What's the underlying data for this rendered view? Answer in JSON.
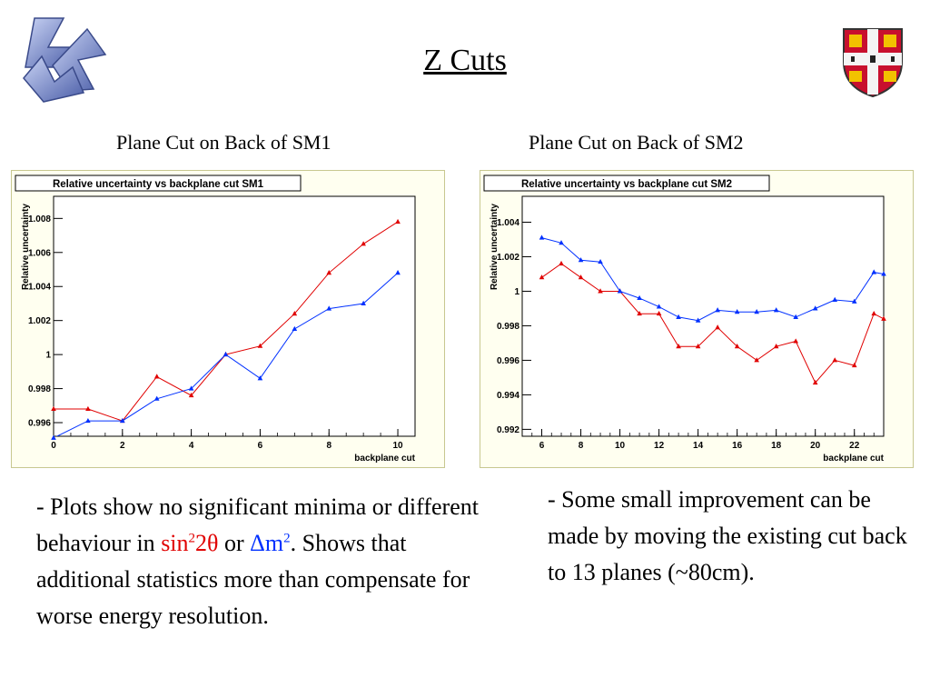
{
  "slide": {
    "title": "Z Cuts",
    "left_subtitle": "Plane Cut on Back of SM1",
    "right_subtitle": "Plane Cut on Back of SM2",
    "left_text": {
      "part1": "- Plots show no significant minima or different behaviour in ",
      "sin_label": "sin",
      "sin_sup": "2",
      "theta_label": "2θ",
      "or_label": " or ",
      "dm_label": "Δm",
      "dm_sup": "2",
      "part2": ". Shows that additional statistics more than compensate for worse energy resolution."
    },
    "right_text": "- Some small improvement can be made by moving the existing cut back to 13 planes (~80cm).",
    "colors": {
      "red": "#e00000",
      "blue": "#0030ff",
      "panel_bg": "#fffff0"
    }
  },
  "chart_data": [
    {
      "type": "line",
      "title": "Relative uncertainty vs backplane cut SM1",
      "xlabel": "backplane cut",
      "ylabel": "Relative uncertainty",
      "xlim": [
        0,
        10.5
      ],
      "ylim": [
        0.9952,
        1.0093
      ],
      "xticks": [
        0,
        2,
        4,
        6,
        8,
        10
      ],
      "xtick_labels": [
        "0",
        "2",
        "4",
        "6",
        "8",
        "10"
      ],
      "yticks": [
        0.996,
        0.998,
        1,
        1.002,
        1.004,
        1.006,
        1.008
      ],
      "ytick_labels": [
        "0.996",
        "0.998",
        "1",
        "1.002",
        "1.004",
        "1.006",
        "1.008"
      ],
      "x": [
        0,
        1,
        2,
        3,
        4,
        5,
        6,
        7,
        8,
        9,
        10
      ],
      "series": [
        {
          "color": "#e00000",
          "values": [
            0.9968,
            0.9968,
            0.9961,
            0.9987,
            0.9976,
            1.0,
            1.0005,
            1.0024,
            1.0048,
            1.0065,
            1.0078
          ]
        },
        {
          "color": "#0030ff",
          "values": [
            0.9951,
            0.9961,
            0.9961,
            0.9974,
            0.998,
            1.0,
            0.9986,
            1.0015,
            1.0027,
            1.003,
            1.0048
          ]
        }
      ]
    },
    {
      "type": "line",
      "title": "Relative uncertainty vs backplane cut SM2",
      "xlabel": "backplane cut",
      "ylabel": "Relative uncertainty",
      "xlim": [
        5,
        23.5
      ],
      "ylim": [
        0.9916,
        1.0055
      ],
      "xticks": [
        6,
        8,
        10,
        12,
        14,
        16,
        18,
        20,
        22
      ],
      "xtick_labels": [
        "6",
        "8",
        "10",
        "12",
        "14",
        "16",
        "18",
        "20",
        "22"
      ],
      "yticks": [
        0.992,
        0.994,
        0.996,
        0.998,
        1,
        1.002,
        1.004
      ],
      "ytick_labels": [
        "0.992",
        "0.994",
        "0.996",
        "0.998",
        "1",
        "1.002",
        "1.004"
      ],
      "x": [
        6,
        7,
        8,
        9,
        10,
        11,
        12,
        13,
        14,
        15,
        16,
        17,
        18,
        19,
        20,
        21,
        22,
        23,
        23.5
      ],
      "series": [
        {
          "color": "#e00000",
          "values": [
            1.0008,
            1.0016,
            1.0008,
            1.0,
            1.0,
            0.9987,
            0.9987,
            0.9968,
            0.9968,
            0.9979,
            0.9968,
            0.996,
            0.9968,
            0.9971,
            0.9947,
            0.996,
            0.9957,
            0.9987,
            0.9984
          ]
        },
        {
          "color": "#0030ff",
          "values": [
            1.0031,
            1.0028,
            1.0018,
            1.0017,
            1.0,
            0.9996,
            0.9991,
            0.9985,
            0.9983,
            0.9989,
            0.9988,
            0.9988,
            0.9989,
            0.9985,
            0.999,
            0.9995,
            0.9994,
            1.0011,
            1.001
          ]
        }
      ]
    }
  ]
}
